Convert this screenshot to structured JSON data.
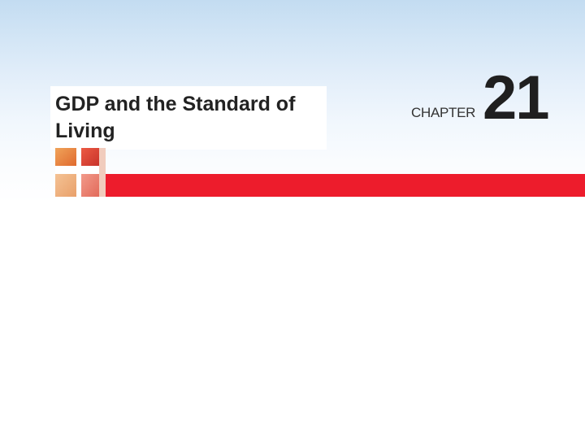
{
  "slide": {
    "title": "GDP and the Standard of Living",
    "chapter_label": "CHAPTER",
    "chapter_number": "21"
  },
  "colors": {
    "accent_red": "#ed1c2c",
    "sky_top": "#c3dcf1",
    "logo_orange": "#e8863a",
    "logo_red": "#d9432f"
  },
  "icons": {
    "logo": "cross-grid-logo-icon"
  }
}
